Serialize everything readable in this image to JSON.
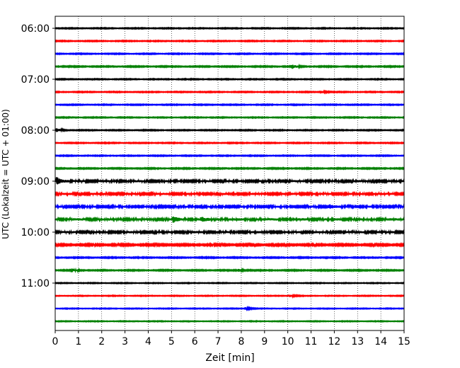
{
  "chart_data": {
    "type": "line",
    "title": "",
    "xlabel": "Zeit  [min]",
    "ylabel": "UTC (Lokalzeit = UTC + 01:00)",
    "xlim": [
      0,
      15
    ],
    "x_ticks": [
      "0",
      "1",
      "2",
      "3",
      "4",
      "5",
      "6",
      "7",
      "8",
      "9",
      "10",
      "11",
      "12",
      "13",
      "14",
      "15"
    ],
    "y_ticks": [
      "06:00",
      "07:00",
      "08:00",
      "09:00",
      "10:00",
      "11:00"
    ],
    "trace_start": "06:00",
    "trace_interval_min": 15,
    "trace_count": 24,
    "trace_colors": [
      "#000000",
      "#ff0000",
      "#0000ff",
      "#008000"
    ],
    "grid": "vertical-dotted",
    "trace_amplitudes": [
      0.6,
      0.6,
      0.6,
      0.7,
      0.6,
      0.6,
      0.6,
      0.6,
      0.6,
      0.6,
      0.6,
      0.7,
      1.4,
      1.4,
      1.3,
      1.5,
      1.4,
      1.1,
      0.7,
      0.7,
      0.5,
      0.5,
      0.5,
      0.5
    ],
    "events": [
      {
        "trace": 3,
        "minute": 10.2,
        "size": 2.5
      },
      {
        "trace": 5,
        "minute": 11.4,
        "size": 2.0
      },
      {
        "trace": 8,
        "minute": 0.1,
        "size": 2.0
      },
      {
        "trace": 12,
        "minute": 0.1,
        "size": 4.5
      },
      {
        "trace": 14,
        "minute": 11.8,
        "size": 2.5
      },
      {
        "trace": 15,
        "minute": 5.1,
        "size": 3.0
      },
      {
        "trace": 15,
        "minute": 6.3,
        "size": 2.5
      },
      {
        "trace": 19,
        "minute": 0.7,
        "size": 2.0
      },
      {
        "trace": 19,
        "minute": 7.9,
        "size": 1.8
      },
      {
        "trace": 21,
        "minute": 10.1,
        "size": 1.5
      },
      {
        "trace": 22,
        "minute": 8.2,
        "size": 1.5
      }
    ]
  }
}
